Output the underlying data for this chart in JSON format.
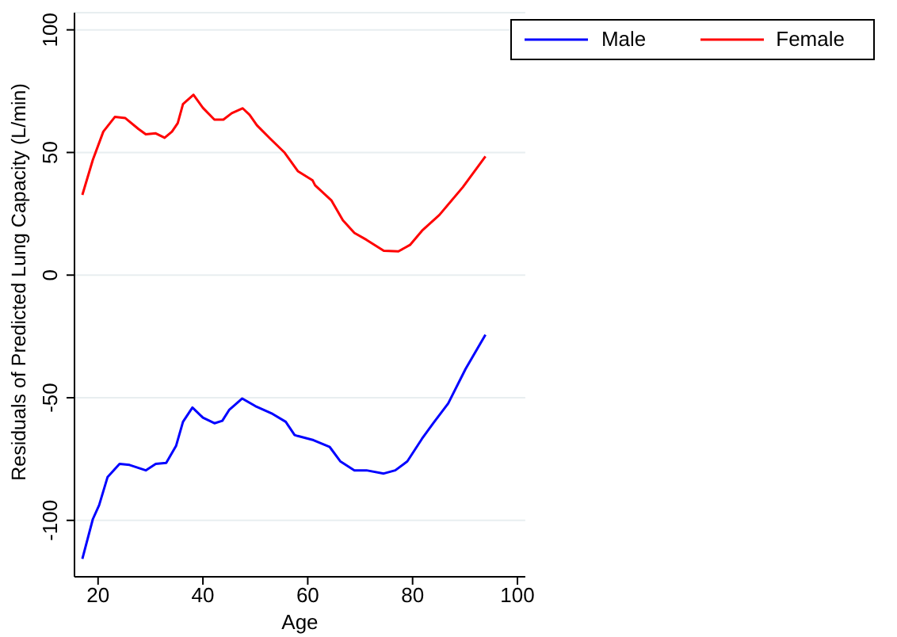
{
  "chart_data": {
    "type": "line",
    "xlabel": "Age",
    "ylabel": "Residuals of Predicted Lung Capacity (L/min)",
    "xlim": [
      15.5,
      101.5
    ],
    "xticks": [
      20,
      40,
      60,
      80,
      100
    ],
    "ylim": [
      -123,
      107
    ],
    "yticks": [
      -100,
      -50,
      0,
      50,
      100
    ],
    "grid": "y",
    "legend": "top right",
    "marker": "none",
    "line_style": "solid",
    "series": [
      {
        "name": "Male",
        "color": "#0000ff",
        "x": [
          17.0,
          19.0,
          20.2,
          21.8,
          24.1,
          26.0,
          29.1,
          31.0,
          33.0,
          34.9,
          36.2,
          38.0,
          40.0,
          42.2,
          43.7,
          45.0,
          47.5,
          50.0,
          53.3,
          55.8,
          57.5,
          58.1,
          61.1,
          64.2,
          66.2,
          68.9,
          71.2,
          74.5,
          76.7,
          79.0,
          81.8,
          84.0,
          86.8,
          90.1,
          93.9
        ],
        "values": [
          -115.7,
          -99.5,
          -93.8,
          -82.4,
          -77,
          -77.4,
          -79.6,
          -77,
          -76.6,
          -69.5,
          -59.8,
          -54,
          -58.1,
          -60.4,
          -59.4,
          -55,
          -50.3,
          -53.4,
          -56.6,
          -59.8,
          -65.2,
          -65.6,
          -67.3,
          -70.1,
          -75.9,
          -79.6,
          -79.6,
          -80.9,
          -79.6,
          -75.9,
          -66.7,
          -60.2,
          -52.3,
          -38.3,
          -24.3
        ]
      },
      {
        "name": "Female",
        "color": "#ff0000",
        "x": [
          17.0,
          19.0,
          21.0,
          23.2,
          25.2,
          27.7,
          29.1,
          31.0,
          32.7,
          34.1,
          35.2,
          36.2,
          38.2,
          40.0,
          42.2,
          43.9,
          45.5,
          47.6,
          48.9,
          50.3,
          52.8,
          55.6,
          58.1,
          60.9,
          61.4,
          64.5,
          66.7,
          68.9,
          71.2,
          74.5,
          77.3,
          79.5,
          81.8,
          85.1,
          89.6,
          93.9
        ],
        "values": [
          32.7,
          47,
          58.5,
          64.5,
          64,
          59.6,
          57.4,
          57.8,
          56,
          58.5,
          62,
          69.7,
          73.5,
          68.2,
          63.4,
          63.4,
          66,
          68,
          65.4,
          61.1,
          55.7,
          49.9,
          42.4,
          38.7,
          36.6,
          30.5,
          22.4,
          17.2,
          14.4,
          9.9,
          9.7,
          12.3,
          18.1,
          24.5,
          35.9,
          48.4
        ]
      }
    ]
  }
}
